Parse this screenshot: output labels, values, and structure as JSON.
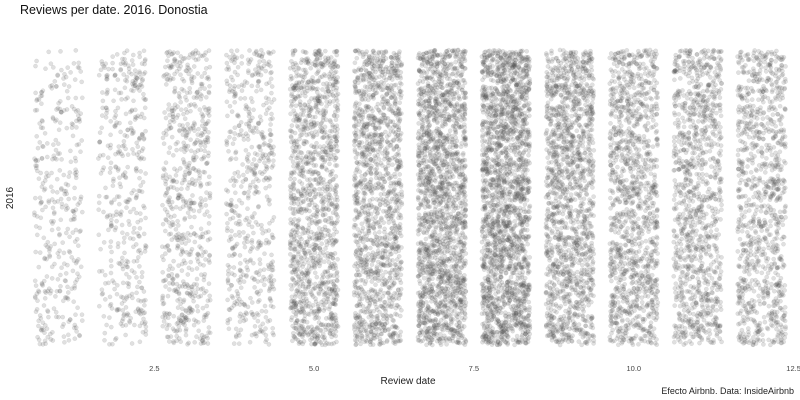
{
  "chart_data": {
    "type": "scatter",
    "title": "Reviews per date. 2016. Donostia",
    "xlabel": "Review date",
    "ylabel": "2016",
    "caption": "Efecto Airbnb. Data: InsideAirbnb",
    "xlim": [
      0.4,
      12.6
    ],
    "x_ticks": [
      "2.5",
      "5.0",
      "7.5",
      "10.0",
      "12.5"
    ],
    "x_tick_values": [
      2.5,
      5.0,
      7.5,
      10.0,
      12.5
    ],
    "grid": false,
    "jitter": "horizontal and vertical, within each month",
    "point_color": "#555555",
    "point_opacity": 0.18,
    "categories": [
      "1",
      "2",
      "3",
      "4",
      "5",
      "6",
      "7",
      "8",
      "9",
      "10",
      "11",
      "12"
    ],
    "values": [
      350,
      420,
      650,
      540,
      1300,
      1400,
      1900,
      2100,
      1500,
      1250,
      1100,
      1000
    ]
  }
}
